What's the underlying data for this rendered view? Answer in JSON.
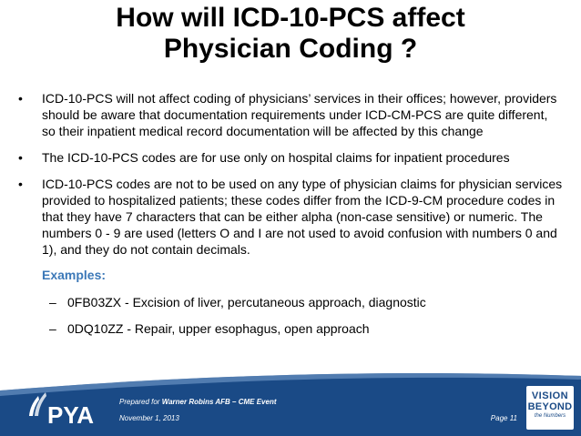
{
  "slide": {
    "title_line1": "How will ICD-10-PCS affect",
    "title_line2": "Physician Coding ?",
    "bullets": [
      "ICD-10-PCS will not affect coding of physicians’ services in their offices; however, providers should be aware that documentation requirements under ICD-CM-PCS are quite different, so their inpatient medical record documentation will be affected by this change",
      "The ICD-10-PCS codes are for use only on hospital claims for inpatient procedures",
      "ICD-10-PCS codes are not to be used on any type of physician claims for physician services provided to hospitalized patients; these codes differ from the ICD-9-CM procedure codes in that they have 7 characters that can be either alpha (non-case sensitive) or numeric. The numbers 0 - 9 are used (letters O and I are not used to avoid confusion with numbers 0 and 1), and they do not contain decimals."
    ],
    "bullet_symbol": "•",
    "examples_heading": "Examples:",
    "dash_symbol": "–",
    "examples": [
      "0FB03ZX - Excision of liver, percutaneous approach, diagnostic",
      "0DQ10ZZ - Repair, upper esophagus, open approach"
    ]
  },
  "footer": {
    "logo_text": "PYA",
    "prepared_prefix": "Prepared for ",
    "prepared_for": "Warner Robins AFB – CME Event",
    "date": "November 1, 2013",
    "page_label": "Page 11",
    "badge_line1": "VISION",
    "badge_line2": "BEYOND",
    "badge_line3": "the Numbers",
    "colors": {
      "footer_bg": "#1a4a86",
      "accent": "#3d79b8"
    }
  }
}
